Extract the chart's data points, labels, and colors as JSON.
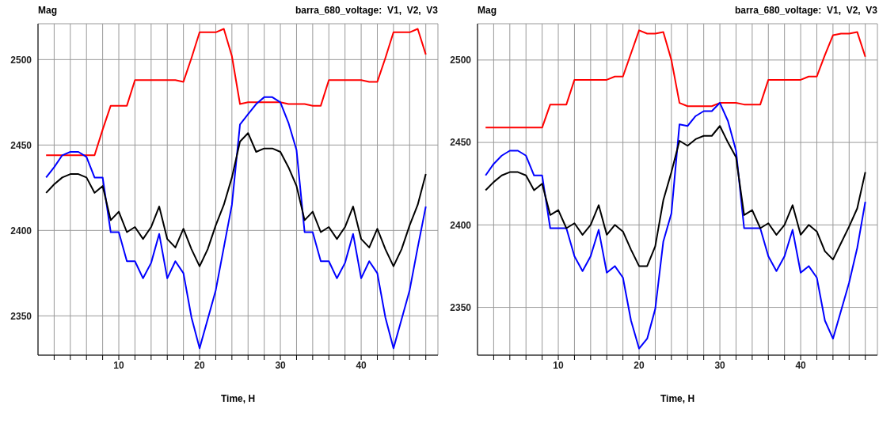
{
  "chart_data": [
    {
      "type": "line",
      "subtitle": "barra_680_voltage:  V1,  V2,  V3",
      "ylabel": "Mag",
      "xlabel": "Time, H",
      "x": [
        1,
        2,
        3,
        4,
        5,
        6,
        7,
        8,
        9,
        10,
        11,
        12,
        13,
        14,
        15,
        16,
        17,
        18,
        19,
        20,
        21,
        22,
        23,
        24,
        25,
        26,
        27,
        28,
        29,
        30,
        31,
        32,
        33,
        34,
        35,
        36,
        37,
        38,
        39,
        40,
        41,
        42,
        43,
        44,
        45,
        46,
        47,
        48
      ],
      "series": [
        {
          "color": "#ff0000",
          "values": [
            2444,
            2444,
            2444,
            2444,
            2444,
            2444,
            2444,
            2459,
            2473,
            2473,
            2473,
            2488,
            2488,
            2488,
            2488,
            2488,
            2488,
            2487,
            2501,
            2516,
            2516,
            2516,
            2518,
            2502,
            2474,
            2475,
            2475,
            2475,
            2475,
            2475,
            2474,
            2474,
            2474,
            2473,
            2473,
            2488,
            2488,
            2488,
            2488,
            2488,
            2487,
            2487,
            2501,
            2516,
            2516,
            2516,
            2518,
            2503
          ]
        },
        {
          "color": "#0000ff",
          "values": [
            2431,
            2437,
            2444,
            2446,
            2446,
            2443,
            2431,
            2431,
            2399,
            2399,
            2382,
            2382,
            2372,
            2381,
            2398,
            2372,
            2382,
            2375,
            2349,
            2331,
            2348,
            2365,
            2390,
            2415,
            2462,
            2468,
            2474,
            2478,
            2478,
            2475,
            2463,
            2447,
            2399,
            2399,
            2382,
            2382,
            2372,
            2381,
            2398,
            2372,
            2382,
            2375,
            2349,
            2331,
            2348,
            2365,
            2390,
            2414
          ]
        },
        {
          "color": "#000000",
          "values": [
            2422,
            2427,
            2431,
            2433,
            2433,
            2431,
            2422,
            2426,
            2406,
            2411,
            2399,
            2402,
            2395,
            2402,
            2414,
            2395,
            2390,
            2401,
            2389,
            2379,
            2389,
            2403,
            2415,
            2431,
            2452,
            2457,
            2446,
            2448,
            2448,
            2446,
            2437,
            2426,
            2406,
            2411,
            2399,
            2402,
            2395,
            2402,
            2414,
            2395,
            2390,
            2401,
            2389,
            2379,
            2389,
            2403,
            2415,
            2433
          ]
        }
      ],
      "xlim": [
        0,
        49.5
      ],
      "xticks": [
        {
          "value": 2,
          "label": null
        },
        {
          "value": 4,
          "label": null
        },
        {
          "value": 6,
          "label": null
        },
        {
          "value": 8,
          "label": null
        },
        10,
        {
          "value": 12,
          "label": null
        },
        {
          "value": 14,
          "label": null
        },
        {
          "value": 16,
          "label": null
        },
        {
          "value": 18,
          "label": null
        },
        20,
        {
          "value": 22,
          "label": null
        },
        {
          "value": 24,
          "label": null
        },
        {
          "value": 26,
          "label": null
        },
        {
          "value": 28,
          "label": null
        },
        30,
        {
          "value": 32,
          "label": null
        },
        {
          "value": 34,
          "label": null
        },
        {
          "value": 36,
          "label": null
        },
        {
          "value": 38,
          "label": null
        },
        40,
        {
          "value": 42,
          "label": null
        },
        {
          "value": 44,
          "label": null
        },
        {
          "value": 46,
          "label": null
        },
        {
          "value": 48,
          "label": null
        }
      ],
      "ylim": [
        2327,
        2521
      ],
      "yticks": [
        2350,
        2400,
        2450,
        2500
      ],
      "grid": true,
      "marker": "none"
    },
    {
      "type": "line",
      "subtitle": "barra_680_voltage:  V1,  V2,  V3",
      "ylabel": "Mag",
      "xlabel": "Time, H",
      "x": [
        1,
        2,
        3,
        4,
        5,
        6,
        7,
        8,
        9,
        10,
        11,
        12,
        13,
        14,
        15,
        16,
        17,
        18,
        19,
        20,
        21,
        22,
        23,
        24,
        25,
        26,
        27,
        28,
        29,
        30,
        31,
        32,
        33,
        34,
        35,
        36,
        37,
        38,
        39,
        40,
        41,
        42,
        43,
        44,
        45,
        46,
        47,
        48
      ],
      "series": [
        {
          "color": "#ff0000",
          "values": [
            2459,
            2459,
            2459,
            2459,
            2459,
            2459,
            2459,
            2459,
            2473,
            2473,
            2473,
            2488,
            2488,
            2488,
            2488,
            2488,
            2490,
            2490,
            2504,
            2518,
            2516,
            2516,
            2517,
            2500,
            2474,
            2472,
            2472,
            2472,
            2472,
            2474,
            2474,
            2474,
            2473,
            2473,
            2473,
            2488,
            2488,
            2488,
            2488,
            2488,
            2490,
            2490,
            2503,
            2515,
            2516,
            2516,
            2517,
            2502
          ]
        },
        {
          "color": "#0000ff",
          "values": [
            2430,
            2437,
            2442,
            2445,
            2445,
            2442,
            2430,
            2430,
            2398,
            2398,
            2398,
            2381,
            2372,
            2381,
            2397,
            2371,
            2375,
            2368,
            2342,
            2325,
            2331,
            2349,
            2390,
            2407,
            2461,
            2460,
            2466,
            2469,
            2469,
            2474,
            2463,
            2445,
            2398,
            2398,
            2398,
            2381,
            2372,
            2381,
            2397,
            2371,
            2375,
            2368,
            2342,
            2331,
            2348,
            2365,
            2386,
            2414
          ]
        },
        {
          "color": "#000000",
          "values": [
            2421,
            2426,
            2430,
            2432,
            2432,
            2430,
            2421,
            2425,
            2406,
            2409,
            2398,
            2401,
            2394,
            2400,
            2412,
            2394,
            2400,
            2396,
            2385,
            2375,
            2375,
            2387,
            2415,
            2432,
            2451,
            2448,
            2452,
            2454,
            2454,
            2460,
            2450,
            2441,
            2406,
            2409,
            2398,
            2401,
            2394,
            2400,
            2412,
            2394,
            2400,
            2396,
            2384,
            2379,
            2389,
            2399,
            2410,
            2432
          ]
        }
      ],
      "xlim": [
        0,
        49.5
      ],
      "xticks": [
        {
          "value": 2,
          "label": null
        },
        {
          "value": 4,
          "label": null
        },
        {
          "value": 6,
          "label": null
        },
        {
          "value": 8,
          "label": null
        },
        10,
        {
          "value": 12,
          "label": null
        },
        {
          "value": 14,
          "label": null
        },
        {
          "value": 16,
          "label": null
        },
        {
          "value": 18,
          "label": null
        },
        20,
        {
          "value": 22,
          "label": null
        },
        {
          "value": 24,
          "label": null
        },
        {
          "value": 26,
          "label": null
        },
        {
          "value": 28,
          "label": null
        },
        30,
        {
          "value": 32,
          "label": null
        },
        {
          "value": 34,
          "label": null
        },
        {
          "value": 36,
          "label": null
        },
        {
          "value": 38,
          "label": null
        },
        40,
        {
          "value": 42,
          "label": null
        },
        {
          "value": 44,
          "label": null
        },
        {
          "value": 46,
          "label": null
        },
        {
          "value": 48,
          "label": null
        }
      ],
      "ylim": [
        2321,
        2522
      ],
      "yticks": [
        2350,
        2400,
        2450,
        2500
      ],
      "grid": true,
      "marker": "none"
    }
  ]
}
